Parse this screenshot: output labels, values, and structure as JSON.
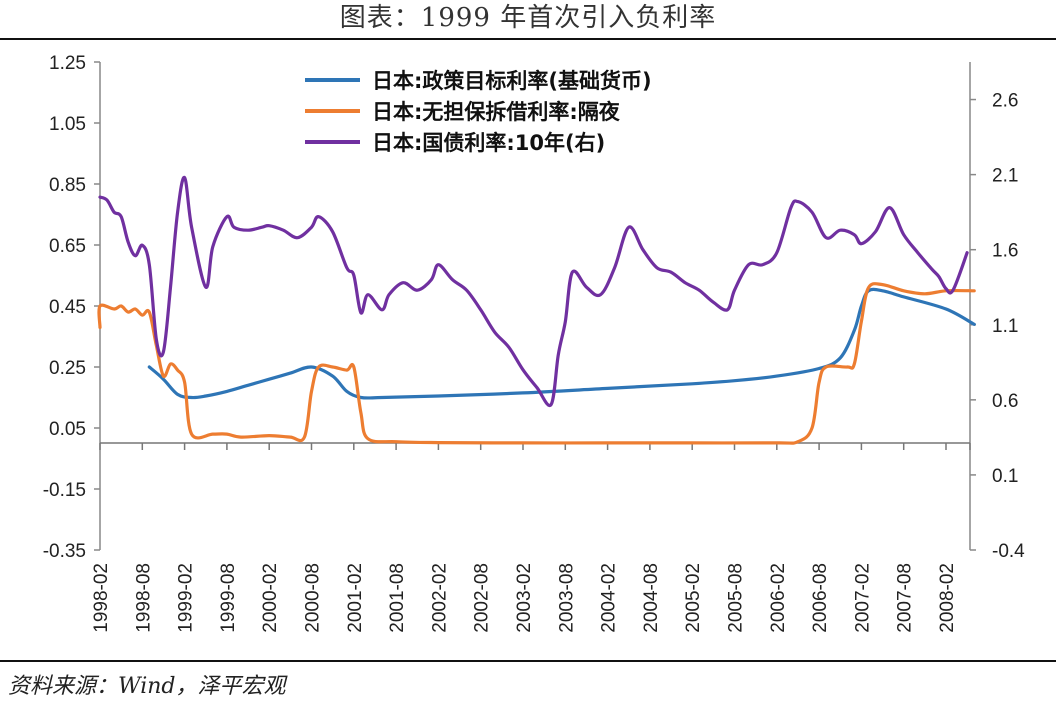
{
  "title": "图表：1999 年首次引入负利率",
  "source": "资料来源：Wind，泽平宏观",
  "chart_data": {
    "type": "line",
    "x_categories": [
      "1998-02",
      "1998-08",
      "1999-02",
      "1999-08",
      "2000-02",
      "2000-08",
      "2001-02",
      "2001-08",
      "2002-02",
      "2002-08",
      "2003-02",
      "2003-08",
      "2004-02",
      "2004-08",
      "2005-02",
      "2005-08",
      "2006-02",
      "2006-08",
      "2007-02",
      "2007-08",
      "2008-02"
    ],
    "y_left": {
      "ticks": [
        "1.25",
        "1.05",
        "0.85",
        "0.65",
        "0.45",
        "0.25",
        "0.05",
        "-0.15",
        "-0.35"
      ],
      "range": [
        -0.35,
        1.25
      ]
    },
    "y_right": {
      "ticks": [
        "2.6",
        "2.1",
        "1.6",
        "1.1",
        "0.6",
        "0.1",
        "-0.4"
      ],
      "range": [
        -0.4,
        2.85
      ]
    },
    "legend_position": "top",
    "series": [
      {
        "name": "日本:政策目标利率(基础货币)",
        "color": "#2e75b6",
        "axis": "left",
        "points": [
          [
            "1998-09",
            0.25
          ],
          [
            "1998-11",
            0.21
          ],
          [
            "1999-01",
            0.16
          ],
          [
            "1999-03",
            0.15
          ],
          [
            "1999-05",
            0.155
          ],
          [
            "1999-08",
            0.17
          ],
          [
            "1999-11",
            0.19
          ],
          [
            "2000-02",
            0.21
          ],
          [
            "2000-05",
            0.23
          ],
          [
            "2000-08",
            0.25
          ],
          [
            "2000-11",
            0.22
          ],
          [
            "2001-01",
            0.17
          ],
          [
            "2001-03",
            0.15
          ],
          [
            "2001-06",
            0.15
          ],
          [
            "2002-02",
            0.155
          ],
          [
            "2003-02",
            0.165
          ],
          [
            "2004-02",
            0.18
          ],
          [
            "2005-02",
            0.195
          ],
          [
            "2005-08",
            0.205
          ],
          [
            "2006-02",
            0.22
          ],
          [
            "2006-08",
            0.245
          ],
          [
            "2006-11",
            0.28
          ],
          [
            "2007-01",
            0.37
          ],
          [
            "2007-02",
            0.45
          ],
          [
            "2007-03",
            0.5
          ],
          [
            "2007-05",
            0.5
          ],
          [
            "2007-08",
            0.48
          ],
          [
            "2008-02",
            0.44
          ],
          [
            "2008-06",
            0.39
          ]
        ]
      },
      {
        "name": "日本:无担保拆借利率:隔夜",
        "color": "#ed7d31",
        "axis": "left",
        "points": [
          [
            "1998-02",
            0.38
          ],
          [
            "1998-02",
            0.45
          ],
          [
            "1998-04",
            0.44
          ],
          [
            "1998-05",
            0.45
          ],
          [
            "1998-06",
            0.43
          ],
          [
            "1998-07",
            0.44
          ],
          [
            "1998-08",
            0.42
          ],
          [
            "1998-09",
            0.43
          ],
          [
            "1998-10",
            0.32
          ],
          [
            "1998-11",
            0.22
          ],
          [
            "1998-12",
            0.26
          ],
          [
            "1999-01",
            0.24
          ],
          [
            "1999-02",
            0.2
          ],
          [
            "1999-03",
            0.03
          ],
          [
            "1999-06",
            0.03
          ],
          [
            "1999-08",
            0.03
          ],
          [
            "1999-10",
            0.02
          ],
          [
            "2000-02",
            0.025
          ],
          [
            "2000-05",
            0.02
          ],
          [
            "2000-07",
            0.02
          ],
          [
            "2000-08",
            0.17
          ],
          [
            "2000-09",
            0.25
          ],
          [
            "2000-11",
            0.25
          ],
          [
            "2001-01",
            0.24
          ],
          [
            "2001-02",
            0.25
          ],
          [
            "2001-03",
            0.1
          ],
          [
            "2001-04",
            0.015
          ],
          [
            "2001-08",
            0.005
          ],
          [
            "2002-02",
            0.002
          ],
          [
            "2003-02",
            0.001
          ],
          [
            "2004-02",
            0.001
          ],
          [
            "2005-02",
            0.001
          ],
          [
            "2006-02",
            0.001
          ],
          [
            "2006-05",
            0.005
          ],
          [
            "2006-07",
            0.05
          ],
          [
            "2006-08",
            0.2
          ],
          [
            "2006-09",
            0.25
          ],
          [
            "2006-12",
            0.25
          ],
          [
            "2007-01",
            0.26
          ],
          [
            "2007-02",
            0.4
          ],
          [
            "2007-03",
            0.51
          ],
          [
            "2007-05",
            0.52
          ],
          [
            "2007-08",
            0.5
          ],
          [
            "2007-11",
            0.49
          ],
          [
            "2008-02",
            0.5
          ],
          [
            "2008-06",
            0.5
          ]
        ]
      },
      {
        "name": "日本:国债利率:10年(右)",
        "color": "#7030a0",
        "axis": "right",
        "points": [
          [
            "1998-02",
            1.95
          ],
          [
            "1998-03",
            1.93
          ],
          [
            "1998-04",
            1.85
          ],
          [
            "1998-05",
            1.82
          ],
          [
            "1998-06",
            1.65
          ],
          [
            "1998-07",
            1.56
          ],
          [
            "1998-08",
            1.63
          ],
          [
            "1998-09",
            1.5
          ],
          [
            "1998-10",
            1.0
          ],
          [
            "1998-11",
            0.92
          ],
          [
            "1998-12",
            1.35
          ],
          [
            "1999-01",
            1.85
          ],
          [
            "1999-02",
            2.08
          ],
          [
            "1999-03",
            1.75
          ],
          [
            "1999-05",
            1.35
          ],
          [
            "1999-06",
            1.62
          ],
          [
            "1999-08",
            1.82
          ],
          [
            "1999-09",
            1.75
          ],
          [
            "1999-11",
            1.73
          ],
          [
            "2000-01",
            1.75
          ],
          [
            "2000-02",
            1.76
          ],
          [
            "2000-04",
            1.73
          ],
          [
            "2000-06",
            1.68
          ],
          [
            "2000-08",
            1.75
          ],
          [
            "2000-09",
            1.82
          ],
          [
            "2000-11",
            1.72
          ],
          [
            "2001-01",
            1.48
          ],
          [
            "2001-02",
            1.43
          ],
          [
            "2001-03",
            1.18
          ],
          [
            "2001-04",
            1.3
          ],
          [
            "2001-06",
            1.2
          ],
          [
            "2001-07",
            1.3
          ],
          [
            "2001-09",
            1.38
          ],
          [
            "2001-11",
            1.33
          ],
          [
            "2002-01",
            1.4
          ],
          [
            "2002-02",
            1.5
          ],
          [
            "2002-04",
            1.4
          ],
          [
            "2002-06",
            1.33
          ],
          [
            "2002-08",
            1.2
          ],
          [
            "2002-10",
            1.05
          ],
          [
            "2002-12",
            0.95
          ],
          [
            "2003-02",
            0.8
          ],
          [
            "2003-04",
            0.68
          ],
          [
            "2003-06",
            0.57
          ],
          [
            "2003-07",
            0.9
          ],
          [
            "2003-08",
            1.12
          ],
          [
            "2003-09",
            1.45
          ],
          [
            "2003-11",
            1.35
          ],
          [
            "2004-01",
            1.3
          ],
          [
            "2004-03",
            1.48
          ],
          [
            "2004-05",
            1.75
          ],
          [
            "2004-07",
            1.6
          ],
          [
            "2004-09",
            1.48
          ],
          [
            "2004-11",
            1.45
          ],
          [
            "2005-01",
            1.38
          ],
          [
            "2005-03",
            1.33
          ],
          [
            "2005-05",
            1.25
          ],
          [
            "2005-07",
            1.2
          ],
          [
            "2005-08",
            1.33
          ],
          [
            "2005-10",
            1.5
          ],
          [
            "2005-12",
            1.5
          ],
          [
            "2006-02",
            1.58
          ],
          [
            "2006-04",
            1.88
          ],
          [
            "2006-05",
            1.92
          ],
          [
            "2006-07",
            1.85
          ],
          [
            "2006-09",
            1.68
          ],
          [
            "2006-11",
            1.73
          ],
          [
            "2007-01",
            1.7
          ],
          [
            "2007-02",
            1.64
          ],
          [
            "2007-04",
            1.72
          ],
          [
            "2007-06",
            1.88
          ],
          [
            "2007-08",
            1.7
          ],
          [
            "2007-10",
            1.58
          ],
          [
            "2007-12",
            1.47
          ],
          [
            "2008-01",
            1.42
          ],
          [
            "2008-02",
            1.34
          ],
          [
            "2008-03",
            1.33
          ],
          [
            "2008-05",
            1.58
          ]
        ]
      }
    ]
  }
}
